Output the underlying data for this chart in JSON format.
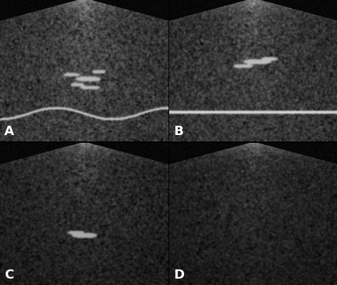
{
  "layout": {
    "rows": 2,
    "cols": 2
  },
  "labels": [
    "A",
    "B",
    "C",
    "D"
  ],
  "background_color": "#000000",
  "divider_color": "#ffffff",
  "label_color": "#ffffff",
  "label_fontsize": 13,
  "fig_width": 4.74,
  "fig_height": 4.02,
  "dpi": 100
}
